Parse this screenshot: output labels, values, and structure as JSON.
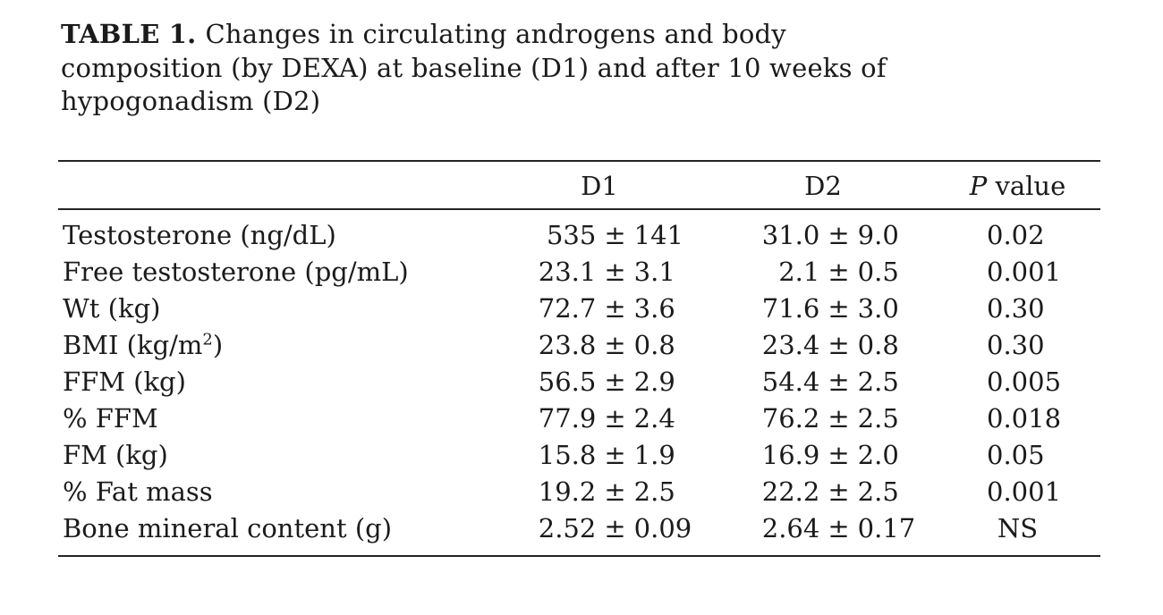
{
  "caption": {
    "prefix": "TABLE 1.",
    "line1": "Changes in circulating androgens and body",
    "line2": "composition (by DEXA) at baseline (D1) and after 10 weeks of",
    "line3": "hypogonadism (D2)"
  },
  "header": {
    "d1": "D1",
    "d2": "D2",
    "p_italic": "P",
    "p_rest": " value"
  },
  "pm": "±",
  "rows": [
    {
      "label": "Testosterone (ng/dL)",
      "d1": {
        "mean": "535",
        "sd": "141"
      },
      "d2": {
        "mean": "31.0",
        "sd": "9.0"
      },
      "p": "0.02"
    },
    {
      "label": "Free testosterone (pg/mL)",
      "d1": {
        "mean": "23.1",
        "sd": "3.1"
      },
      "d2": {
        "mean": "2.1",
        "sd": "0.5"
      },
      "p": "0.001"
    },
    {
      "label": "Wt (kg)",
      "d1": {
        "mean": "72.7",
        "sd": "3.6"
      },
      "d2": {
        "mean": "71.6",
        "sd": "3.0"
      },
      "p": "0.30"
    },
    {
      "label": "BMI (kg/m",
      "label_sup": "2",
      "label_end": ")",
      "d1": {
        "mean": "23.8",
        "sd": "0.8"
      },
      "d2": {
        "mean": "23.4",
        "sd": "0.8"
      },
      "p": "0.30"
    },
    {
      "label": "FFM (kg)",
      "d1": {
        "mean": "56.5",
        "sd": "2.9"
      },
      "d2": {
        "mean": "54.4",
        "sd": "2.5"
      },
      "p": "0.005"
    },
    {
      "label": "% FFM",
      "d1": {
        "mean": "77.9",
        "sd": "2.4"
      },
      "d2": {
        "mean": "76.2",
        "sd": "2.5"
      },
      "p": "0.018"
    },
    {
      "label": "FM (kg)",
      "d1": {
        "mean": "15.8",
        "sd": "1.9"
      },
      "d2": {
        "mean": "16.9",
        "sd": "2.0"
      },
      "p": "0.05"
    },
    {
      "label": "% Fat mass",
      "d1": {
        "mean": "19.2",
        "sd": "2.5"
      },
      "d2": {
        "mean": "22.2",
        "sd": "2.5"
      },
      "p": "0.001"
    },
    {
      "label": "Bone mineral content (g)",
      "d1": {
        "mean": "2.52",
        "sd": "0.09"
      },
      "d2": {
        "mean": "2.64",
        "sd": "0.17"
      },
      "p": "NS",
      "p_center": true
    }
  ],
  "chart_data": {
    "type": "table",
    "title": "TABLE 1. Changes in circulating androgens and body composition (by DEXA) at baseline (D1) and after 10 weeks of hypogonadism (D2)",
    "columns": [
      "",
      "D1",
      "D2",
      "P value"
    ],
    "rows": [
      [
        "Testosterone (ng/dL)",
        "535 ± 141",
        "31.0 ± 9.0",
        "0.02"
      ],
      [
        "Free testosterone (pg/mL)",
        "23.1 ± 3.1",
        "2.1 ± 0.5",
        "0.001"
      ],
      [
        "Wt (kg)",
        "72.7 ± 3.6",
        "71.6 ± 3.0",
        "0.30"
      ],
      [
        "BMI (kg/m2)",
        "23.8 ± 0.8",
        "23.4 ± 0.8",
        "0.30"
      ],
      [
        "FFM (kg)",
        "56.5 ± 2.9",
        "54.4 ± 2.5",
        "0.005"
      ],
      [
        "% FFM",
        "77.9 ± 2.4",
        "76.2 ± 2.5",
        "0.018"
      ],
      [
        "FM (kg)",
        "15.8 ± 1.9",
        "16.9 ± 2.0",
        "0.05"
      ],
      [
        "% Fat mass",
        "19.2 ± 2.5",
        "22.2 ± 2.5",
        "0.001"
      ],
      [
        "Bone mineral content (g)",
        "2.52 ± 0.09",
        "2.64 ± 0.17",
        "NS"
      ]
    ]
  }
}
